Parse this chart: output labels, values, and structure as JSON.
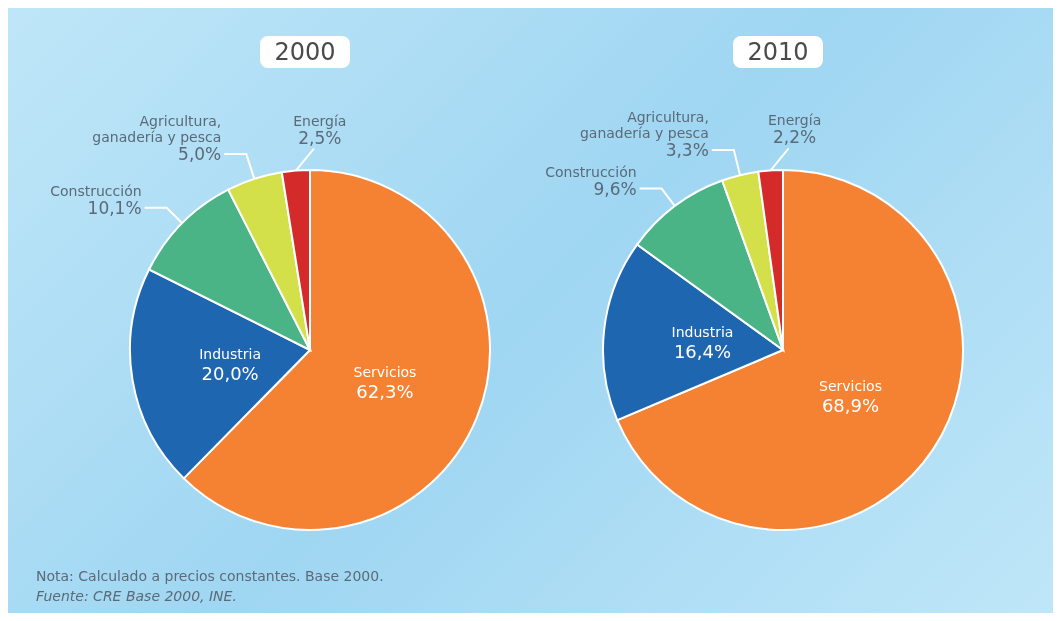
{
  "chart_data": [
    {
      "type": "pie",
      "title": "2000",
      "categories": [
        "Servicios",
        "Industria",
        "Construcción",
        "Agricultura,\nganadería y pesca",
        "Energía"
      ],
      "values": [
        62.3,
        20.0,
        10.1,
        5.0,
        2.5
      ],
      "value_labels": [
        "62,3%",
        "20,0%",
        "10,1%",
        "5,0%",
        "2,5%"
      ],
      "colors": [
        "#f58233",
        "#1f66b0",
        "#4bb487",
        "#d4e04a",
        "#d42a2a"
      ],
      "annotations": [
        "Nota: Calculado a precios constantes. Base 2000.",
        "Fuente: CRE Base 2000, INE."
      ]
    },
    {
      "type": "pie",
      "title": "2010",
      "categories": [
        "Servicios",
        "Industria",
        "Construcción",
        "Agricultura,\nganadería y pesca",
        "Energía"
      ],
      "values": [
        68.9,
        16.4,
        9.6,
        3.3,
        2.2
      ],
      "value_labels": [
        "68,9%",
        "16,4%",
        "9,6%",
        "3,3%",
        "2,2%"
      ],
      "colors": [
        "#f58233",
        "#1f66b0",
        "#4bb487",
        "#d4e04a",
        "#d42a2a"
      ]
    }
  ]
}
